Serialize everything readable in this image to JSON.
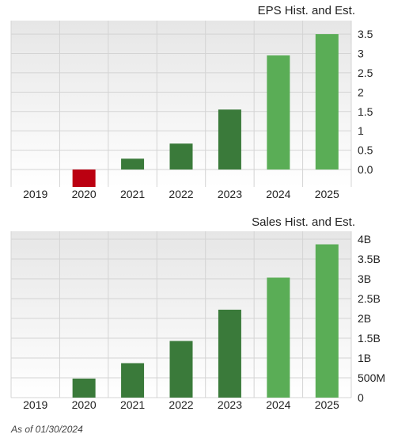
{
  "chart_data": [
    {
      "type": "bar",
      "title": "EPS Hist. and Est.",
      "categories": [
        "2019",
        "2020",
        "2021",
        "2022",
        "2023",
        "2024",
        "2025"
      ],
      "values": [
        0,
        -0.45,
        0.28,
        0.67,
        1.55,
        2.95,
        3.5
      ],
      "estimate": [
        false,
        false,
        false,
        false,
        false,
        true,
        true
      ],
      "y_ticks": [
        0,
        0.5,
        1,
        1.5,
        2,
        2.5,
        3,
        3.5
      ],
      "y_tick_labels": [
        "0.0",
        "0.5",
        "1",
        "1.5",
        "2",
        "2.5",
        "3",
        "3.5"
      ],
      "ylim": [
        -0.45,
        3.85
      ],
      "grid": true
    },
    {
      "type": "bar",
      "title": "Sales Hist. and Est.",
      "categories": [
        "2019",
        "2020",
        "2021",
        "2022",
        "2023",
        "2024",
        "2025"
      ],
      "values": [
        0,
        0.48,
        0.87,
        1.43,
        2.22,
        3.03,
        3.87
      ],
      "value_units": "billions",
      "estimate": [
        false,
        false,
        false,
        false,
        false,
        true,
        true
      ],
      "y_ticks": [
        0,
        0.5,
        1,
        1.5,
        2,
        2.5,
        3,
        3.5,
        4
      ],
      "y_tick_labels": [
        "0",
        "500M",
        "1B",
        "1.5B",
        "2B",
        "2.5B",
        "3B",
        "3.5B",
        "4B"
      ],
      "ylim": [
        0,
        4.2
      ],
      "grid": true
    }
  ],
  "colors": {
    "positive_historical": "#3a7a3a",
    "positive_estimate": "#5aad56",
    "negative": "#bb0011",
    "grid": "#d4d4d4",
    "plot_bg_top": "#e6e6e6",
    "plot_bg_bottom": "#ffffff"
  },
  "footnote": "As of 01/30/2024"
}
